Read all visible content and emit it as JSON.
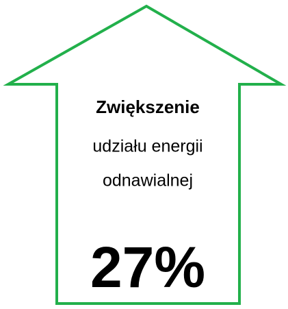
{
  "heading": "Zwiększenie",
  "lines": [
    "udziału energii",
    "odnawialnej"
  ],
  "value": "27%"
}
